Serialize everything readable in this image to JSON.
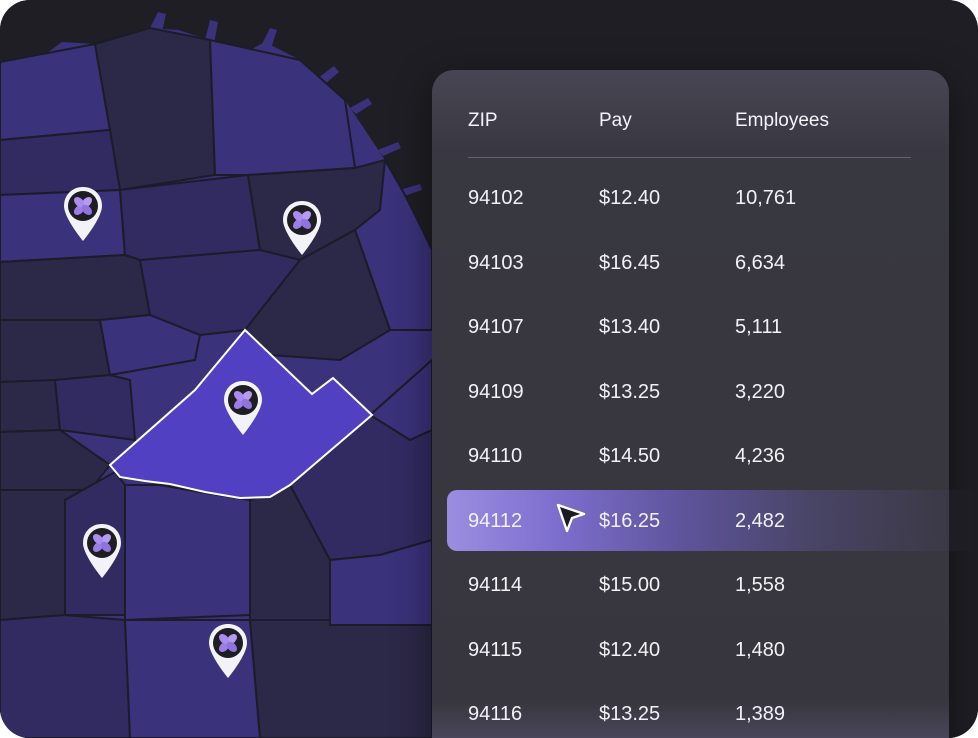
{
  "table": {
    "headers": {
      "zip": "ZIP",
      "pay": "Pay",
      "employees": "Employees"
    },
    "rows": [
      {
        "zip": "94102",
        "pay": "$12.40",
        "employees": "10,761"
      },
      {
        "zip": "94103",
        "pay": "$16.45",
        "employees": "6,634"
      },
      {
        "zip": "94107",
        "pay": "$13.40",
        "employees": "5,111"
      },
      {
        "zip": "94109",
        "pay": "$13.25",
        "employees": "3,220"
      },
      {
        "zip": "94110",
        "pay": "$14.50",
        "employees": "4,236"
      },
      {
        "zip": "94112",
        "pay": "$16.25",
        "employees": "2,482"
      },
      {
        "zip": "94114",
        "pay": "$15.00",
        "employees": "1,558"
      },
      {
        "zip": "94115",
        "pay": "$12.40",
        "employees": "1,480"
      },
      {
        "zip": "94116",
        "pay": "$13.25",
        "employees": "1,389"
      }
    ],
    "selected_zip": "94112"
  },
  "map": {
    "selected_district_color": "#5140c2",
    "district_colors": [
      "#2c2847",
      "#3a327a",
      "#322b62"
    ],
    "pin_icon": "flower-logo-icon"
  },
  "cursor_icon": "pointer-arrow-icon"
}
